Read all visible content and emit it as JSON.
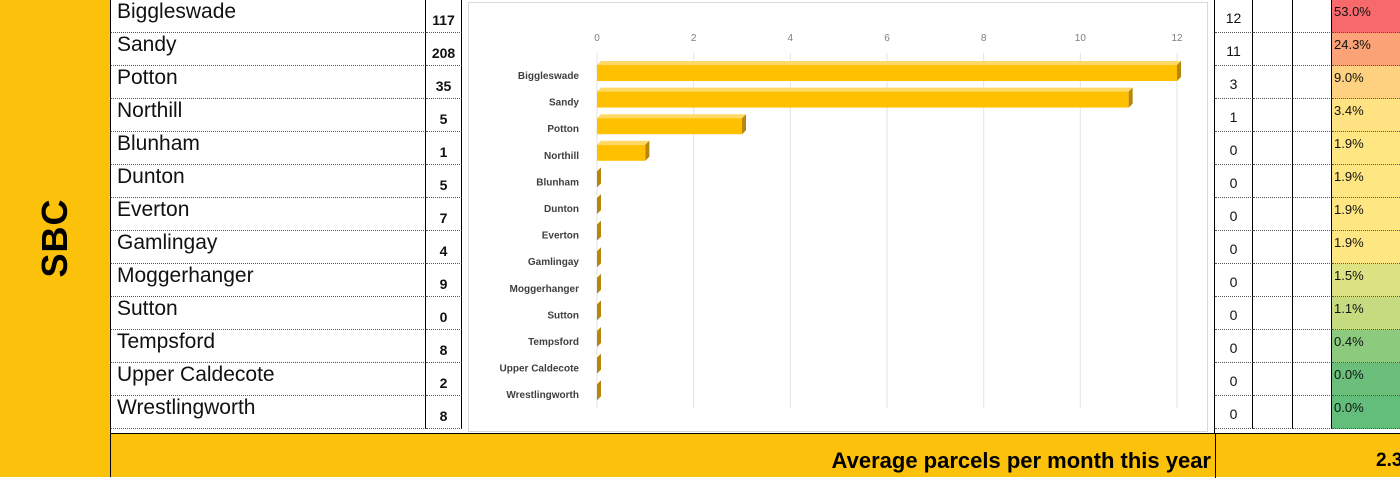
{
  "group_label": "SBC",
  "rows": [
    {
      "name": "Biggleswade",
      "count": "117",
      "value": "12",
      "pct": "53.0%",
      "pct_color": "#f8696b"
    },
    {
      "name": "Sandy",
      "count": "208",
      "value": "11",
      "pct": "24.3%",
      "pct_color": "#fba276"
    },
    {
      "name": "Potton",
      "count": "35",
      "value": "3",
      "pct": "9.0%",
      "pct_color": "#fdd17f"
    },
    {
      "name": "Northill",
      "count": "5",
      "value": "1",
      "pct": "3.4%",
      "pct_color": "#ffe383"
    },
    {
      "name": "Blunham",
      "count": "1",
      "value": "0",
      "pct": "1.9%",
      "pct_color": "#fee783"
    },
    {
      "name": "Dunton",
      "count": "5",
      "value": "0",
      "pct": "1.9%",
      "pct_color": "#fee783"
    },
    {
      "name": "Everton",
      "count": "7",
      "value": "0",
      "pct": "1.9%",
      "pct_color": "#fee783"
    },
    {
      "name": "Gamlingay",
      "count": "4",
      "value": "0",
      "pct": "1.9%",
      "pct_color": "#fee783"
    },
    {
      "name": "Moggerhanger",
      "count": "9",
      "value": "0",
      "pct": "1.5%",
      "pct_color": "#dde282"
    },
    {
      "name": "Sutton",
      "count": "0",
      "value": "0",
      "pct": "1.1%",
      "pct_color": "#c6db80"
    },
    {
      "name": "Tempsford",
      "count": "8",
      "value": "0",
      "pct": "0.4%",
      "pct_color": "#8ccb7d"
    },
    {
      "name": "Upper Caldecote",
      "count": "2",
      "value": "0",
      "pct": "0.0%",
      "pct_color": "#6bbf7b"
    },
    {
      "name": "Wrestlingworth",
      "count": "8",
      "value": "0",
      "pct": "0.0%",
      "pct_color": "#63be7b"
    }
  ],
  "footer": {
    "label": "Average parcels per month this year",
    "value": "2.3"
  },
  "colors": {
    "accent_yellow": "#fcc10a",
    "bar_front": "#ffc000",
    "bar_side": "#b8860b"
  },
  "chart_data": {
    "type": "bar",
    "orientation": "horizontal",
    "categories": [
      "Biggleswade",
      "Sandy",
      "Potton",
      "Northill",
      "Blunham",
      "Dunton",
      "Everton",
      "Gamlingay",
      "Moggerhanger",
      "Sutton",
      "Tempsford",
      "Upper Caldecote",
      "Wrestlingworth"
    ],
    "values": [
      12,
      11,
      3,
      1,
      0,
      0,
      0,
      0,
      0,
      0,
      0,
      0,
      0
    ],
    "xlim": [
      0,
      12
    ],
    "xticks": [
      "0",
      "2",
      "4",
      "6",
      "8",
      "10",
      "12"
    ],
    "grid": true,
    "legend": "none",
    "title": "",
    "xlabel": "",
    "ylabel": ""
  }
}
